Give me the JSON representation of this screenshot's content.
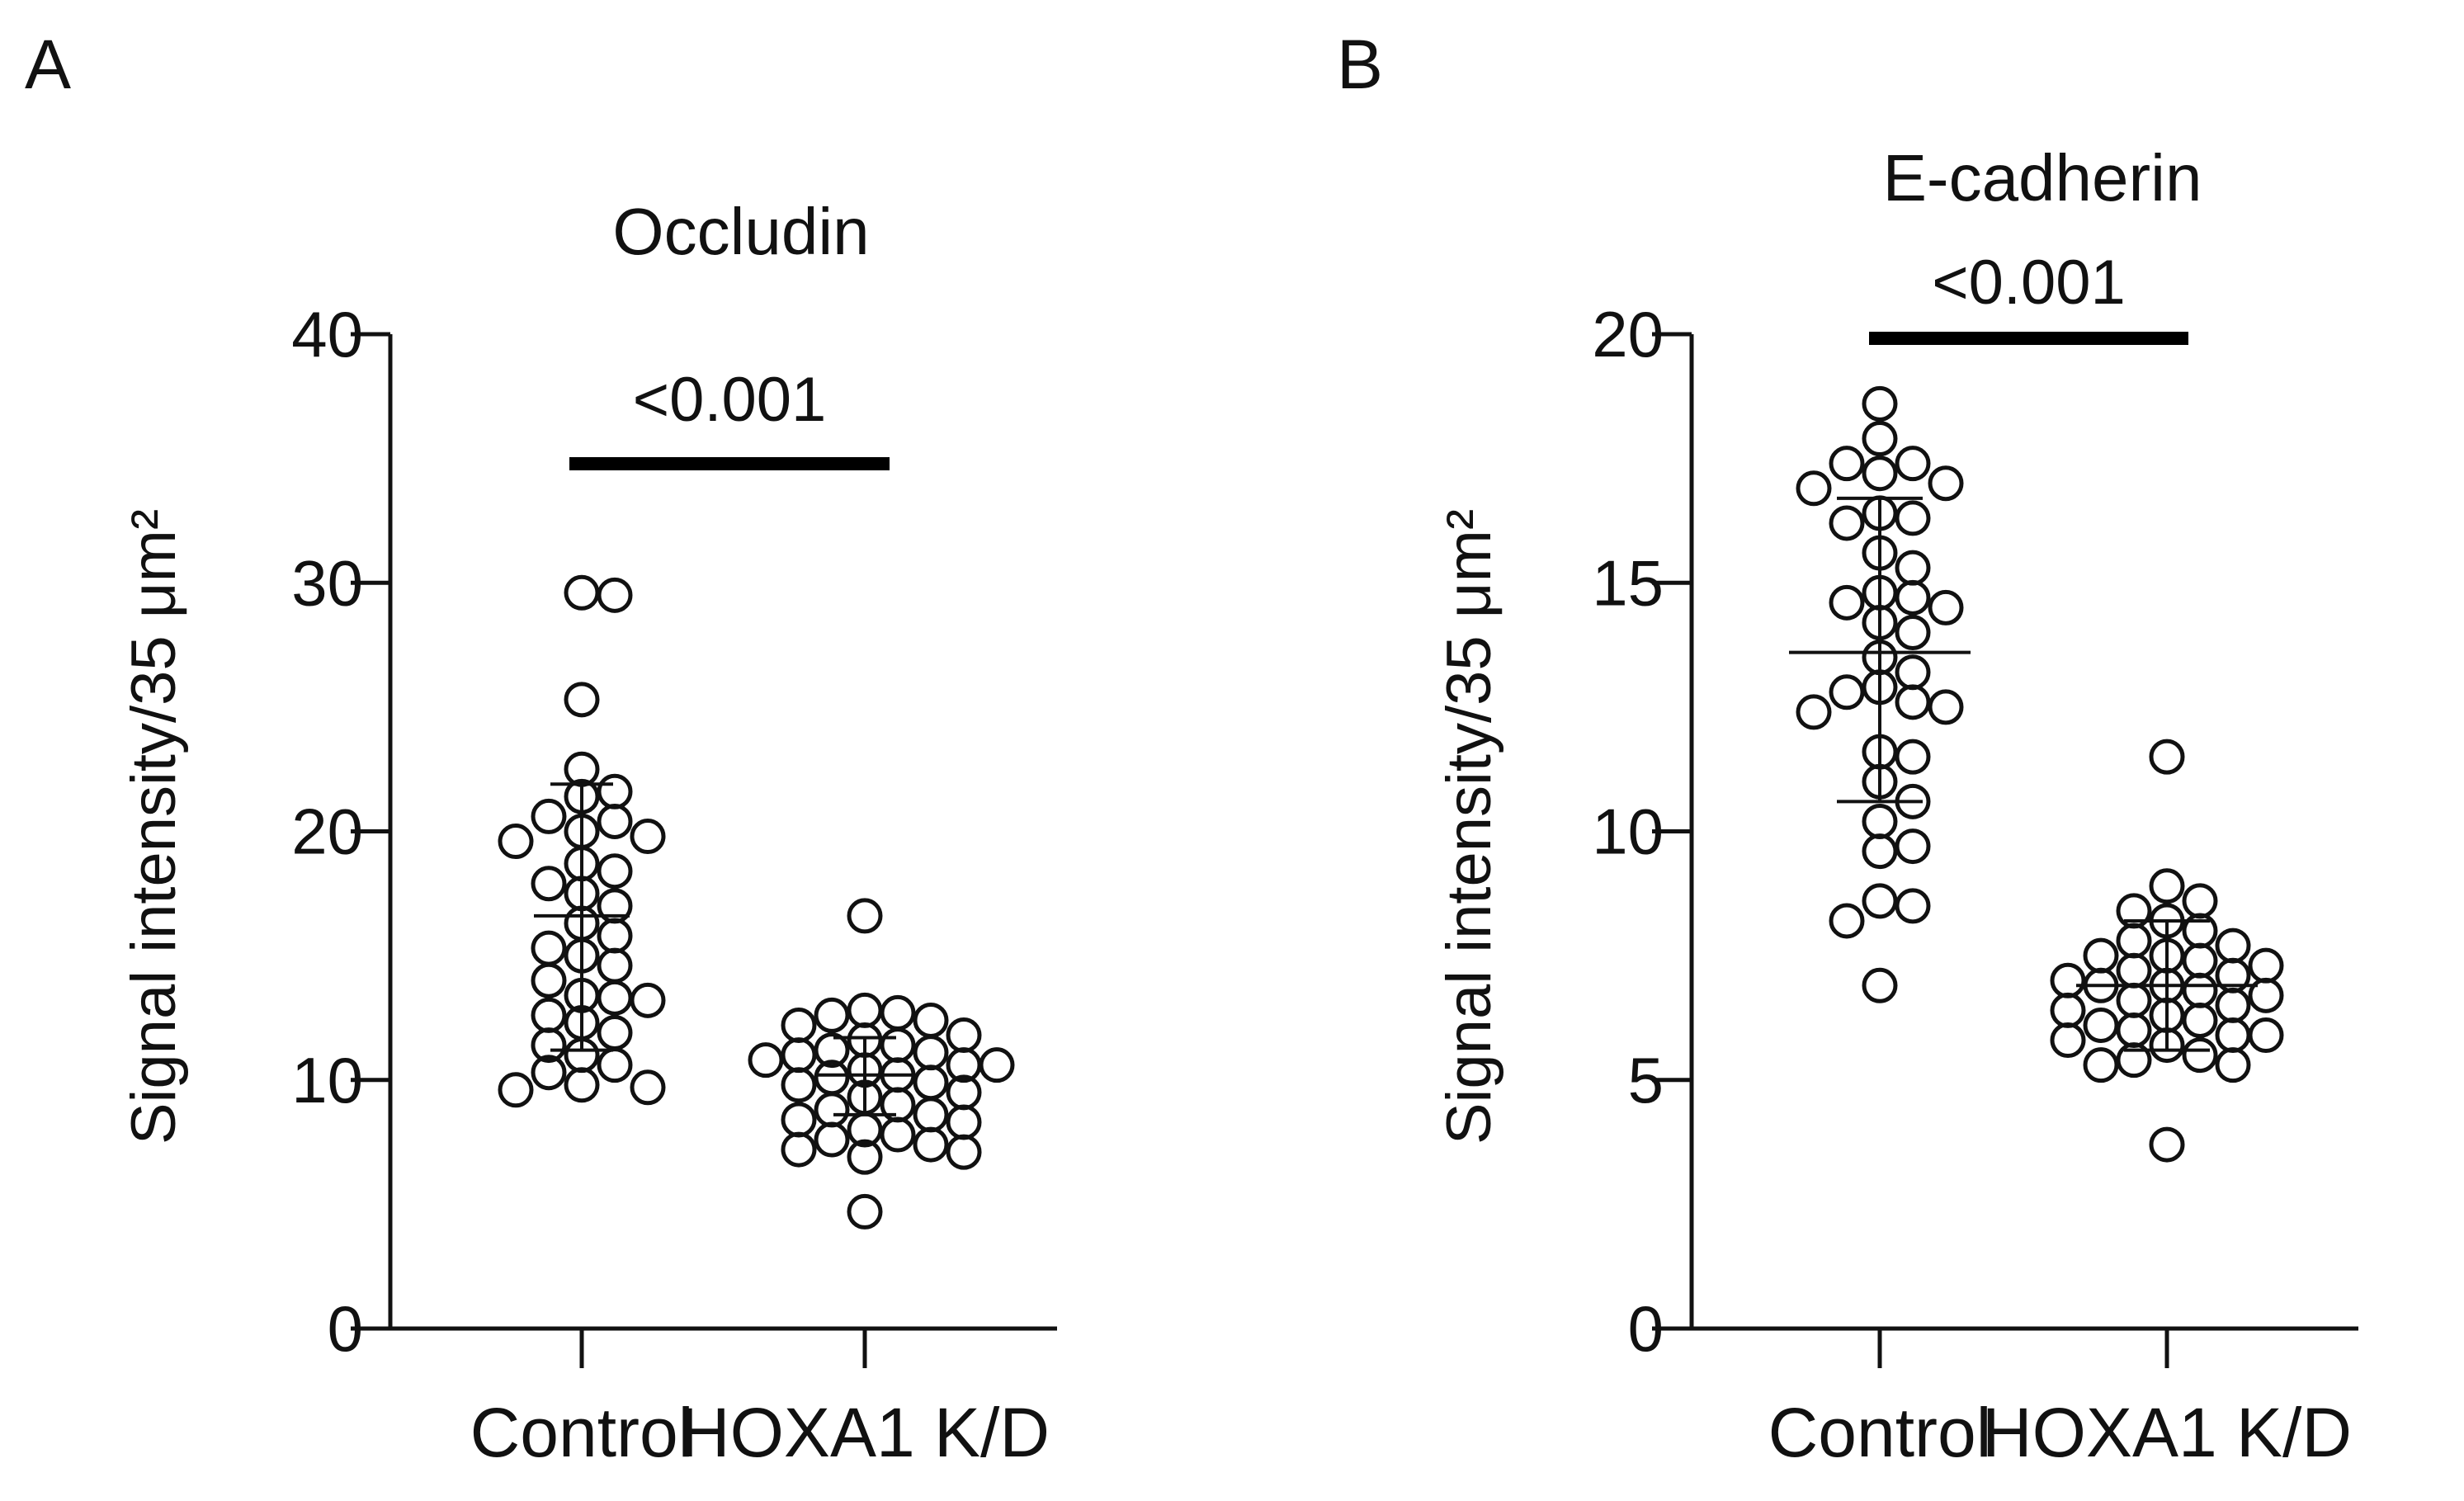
{
  "chart_data": [
    {
      "panel": "A",
      "type": "scatter",
      "title": "Occludin",
      "ylabel": "Signal intensity/35 μm²",
      "ylim": [
        0,
        40
      ],
      "yticks": [
        0,
        10,
        20,
        30,
        40
      ],
      "categories": [
        "Control",
        "HOXA1 K/D"
      ],
      "significance": "<0.001",
      "groups": [
        {
          "name": "Control",
          "mean": 16.6,
          "sd_upper": 21.9,
          "sd_lower": 11.2,
          "values": [
            29.6,
            29.5,
            25.3,
            22.5,
            21.6,
            21.4,
            20.6,
            20.4,
            20.0,
            19.8,
            19.6,
            18.7,
            18.4,
            17.9,
            17.5,
            17.0,
            16.3,
            15.8,
            15.3,
            15.0,
            14.6,
            14.0,
            13.4,
            13.3,
            13.2,
            12.6,
            12.3,
            11.9,
            11.4,
            11.0,
            10.6,
            10.3,
            9.8,
            9.7,
            9.6
          ]
        },
        {
          "name": "HOXA1 K/D",
          "mean": 10.2,
          "sd_upper": 11.7,
          "sd_lower": 8.6,
          "values": [
            16.6,
            12.8,
            12.7,
            12.6,
            12.4,
            12.2,
            11.8,
            11.6,
            11.4,
            11.2,
            11.1,
            11.0,
            10.8,
            10.6,
            10.6,
            10.4,
            10.2,
            10.1,
            9.9,
            9.8,
            9.5,
            9.3,
            9.0,
            8.8,
            8.6,
            8.4,
            8.3,
            8.0,
            7.8,
            7.6,
            7.4,
            7.2,
            7.1,
            6.9,
            4.7
          ]
        }
      ]
    },
    {
      "panel": "B",
      "type": "scatter",
      "title": "E-cadherin",
      "ylabel": "Signal intensity/35 μm²",
      "ylim": [
        0,
        20
      ],
      "yticks": [
        0,
        5,
        10,
        15,
        20
      ],
      "categories": [
        "Control",
        "HOXA1 K/D"
      ],
      "significance": "<0.001",
      "groups": [
        {
          "name": "Control",
          "mean": 13.6,
          "sd_upper": 16.7,
          "sd_lower": 10.6,
          "values": [
            18.6,
            17.9,
            17.4,
            17.4,
            17.2,
            17.0,
            16.9,
            16.4,
            16.3,
            16.2,
            15.6,
            15.3,
            14.8,
            14.7,
            14.6,
            14.5,
            14.2,
            14.0,
            13.5,
            13.2,
            12.9,
            12.8,
            12.6,
            12.5,
            12.4,
            11.6,
            11.5,
            11.0,
            10.6,
            10.2,
            9.7,
            9.6,
            8.6,
            8.5,
            8.2,
            6.9
          ]
        },
        {
          "name": "HOXA1 K/D",
          "mean": 6.9,
          "sd_upper": 8.2,
          "sd_lower": 5.6,
          "values": [
            11.5,
            8.9,
            8.6,
            8.4,
            8.2,
            8.0,
            7.8,
            7.7,
            7.5,
            7.5,
            7.4,
            7.3,
            7.2,
            7.1,
            7.0,
            6.9,
            6.9,
            6.8,
            6.7,
            6.6,
            6.5,
            6.4,
            6.3,
            6.2,
            6.1,
            6.0,
            5.9,
            5.9,
            5.8,
            5.7,
            5.5,
            5.4,
            5.3,
            5.3,
            3.7
          ]
        }
      ]
    }
  ]
}
